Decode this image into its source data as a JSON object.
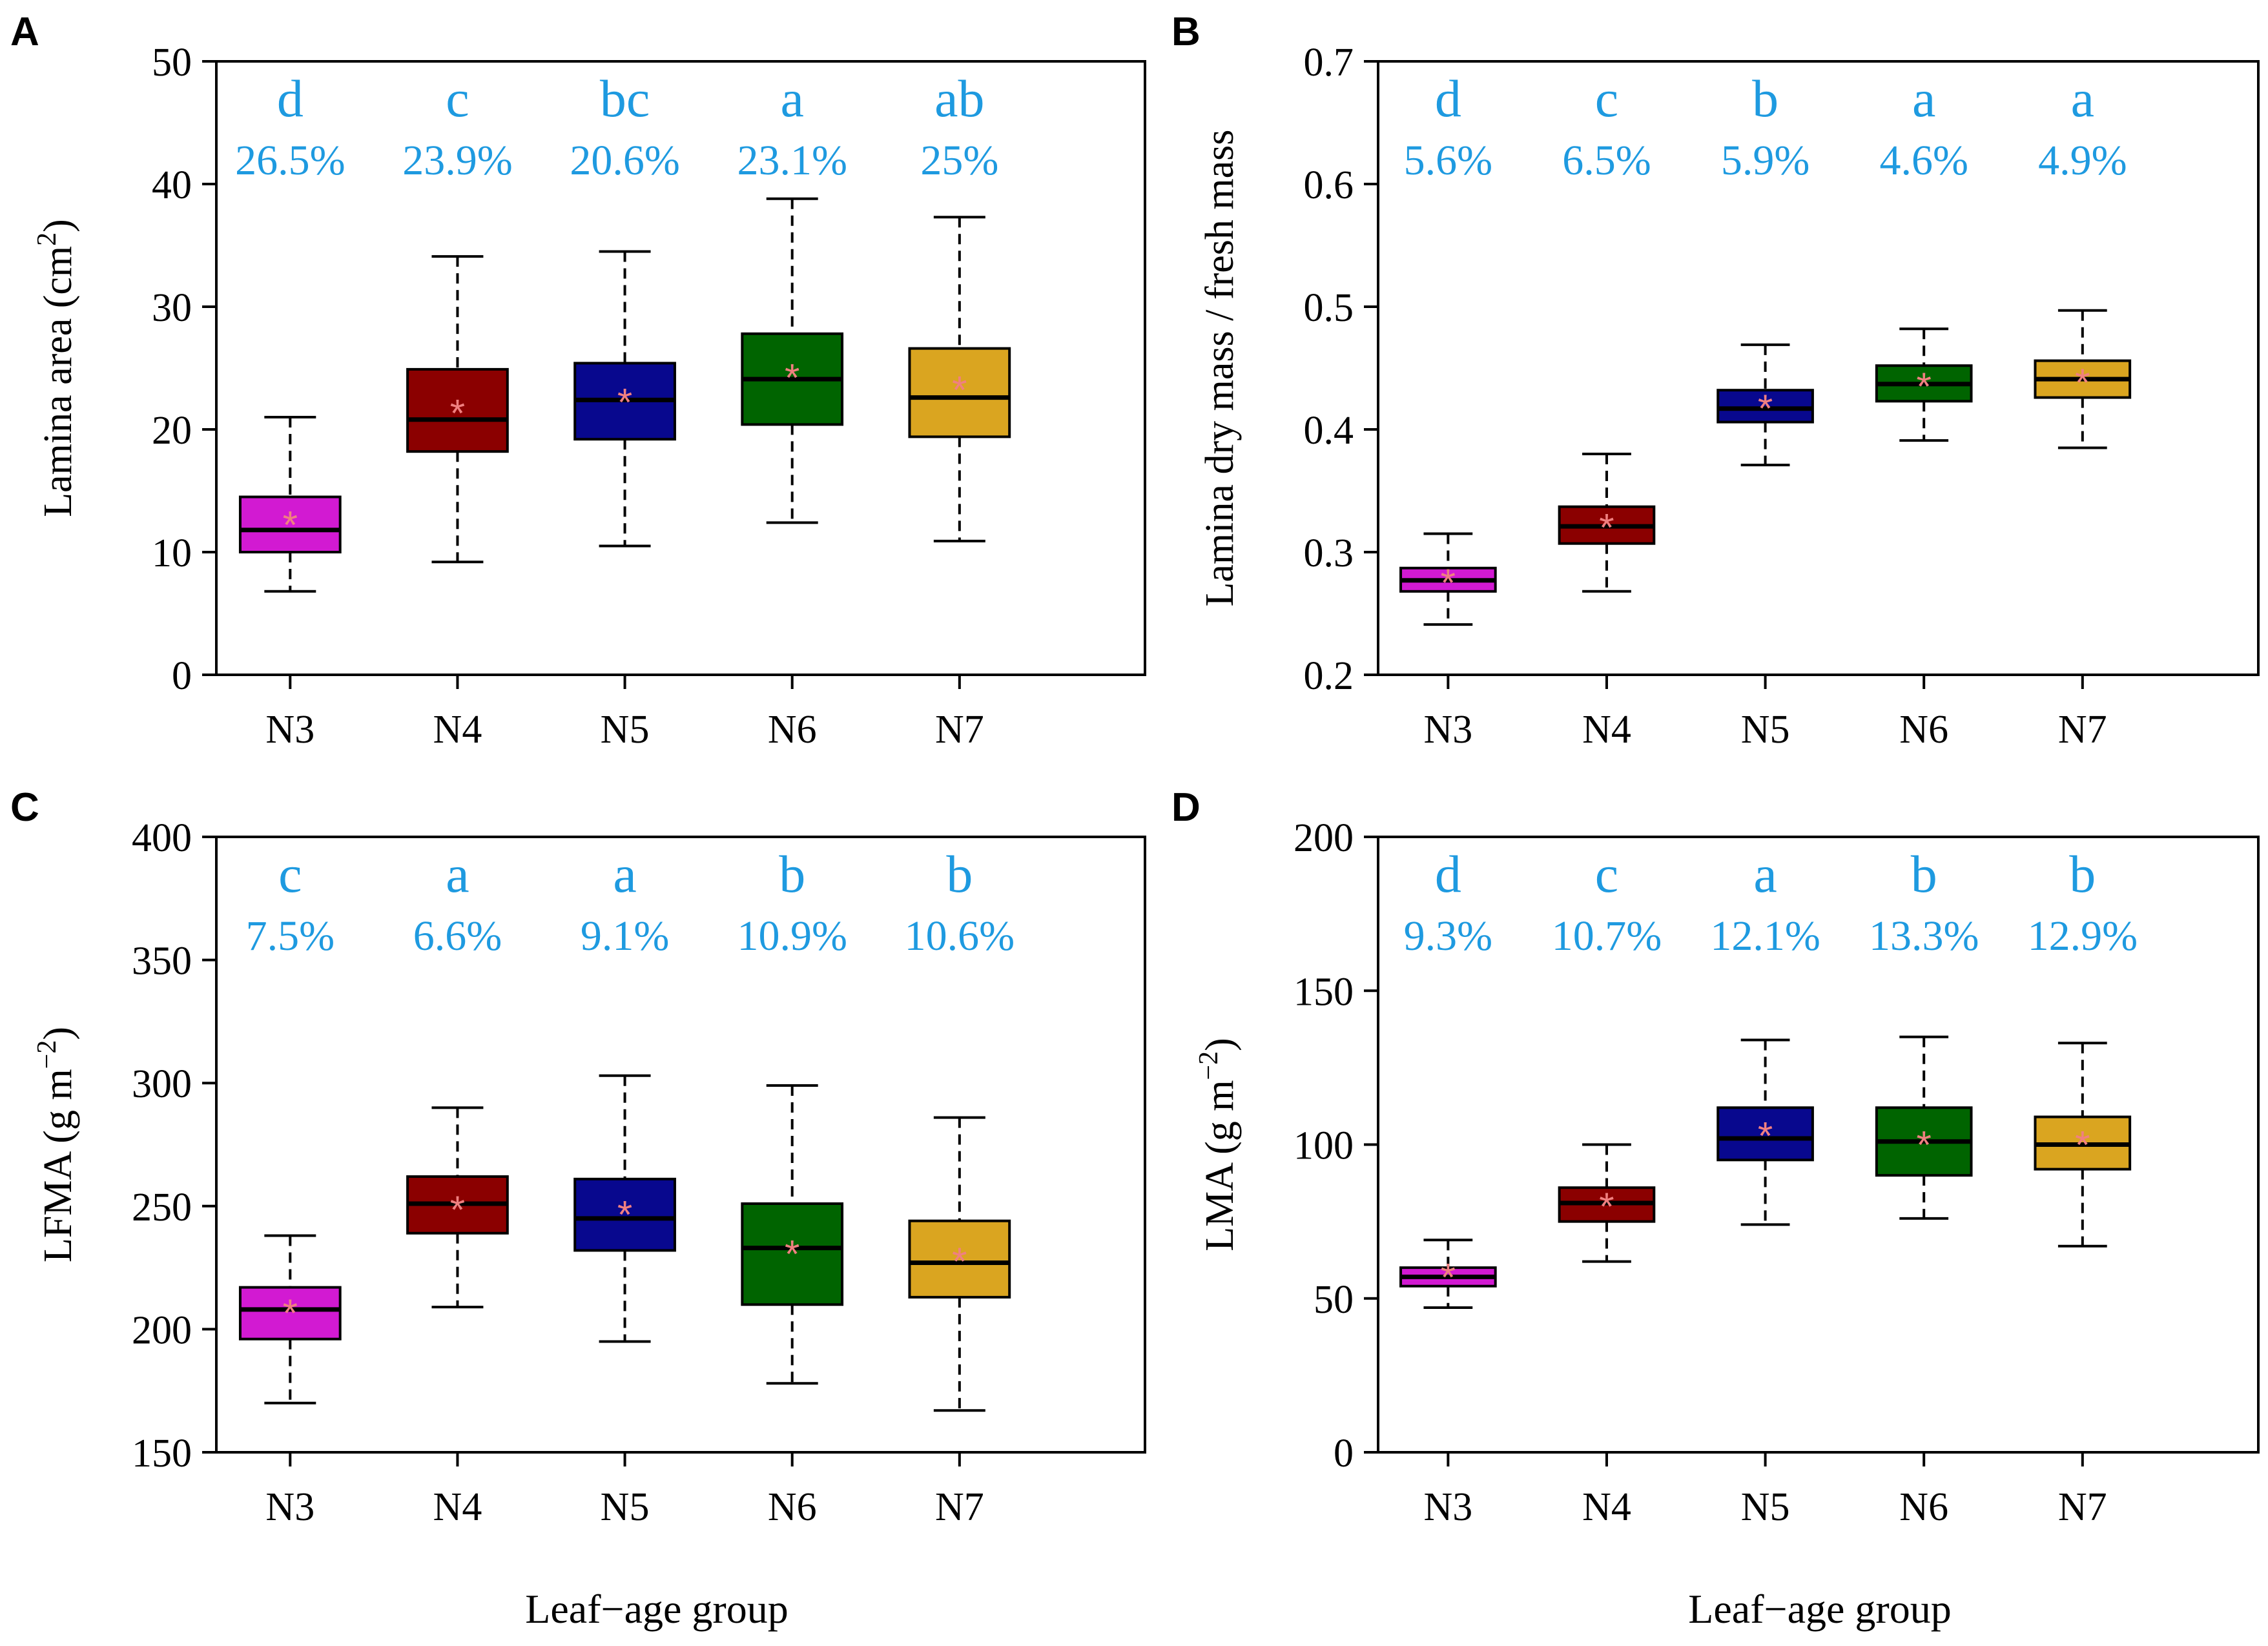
{
  "figure": {
    "x_axis_label": "Leaf−age group"
  },
  "colors": {
    "N3": "#d21ad2",
    "N4": "#8b0000",
    "N5": "#08088e",
    "N6": "#006400",
    "N7": "#daa520",
    "annotation": "#1e9ae0",
    "mean_marker": "#f08080"
  },
  "chart_data": [
    {
      "panel": "A",
      "type": "box",
      "ylabel": "Lamina area (cm",
      "ylabel_sup": "2",
      "ylabel_tail": ")",
      "ylim": [
        0,
        50
      ],
      "yticks": [
        0,
        10,
        20,
        30,
        40,
        50
      ],
      "ytick_labels": [
        "0",
        "10",
        "20",
        "30",
        "40",
        "50"
      ],
      "categories": [
        "N3",
        "N4",
        "N5",
        "N6",
        "N7"
      ],
      "boxes": [
        {
          "whisker_low": 6.8,
          "q1": 10.0,
          "median": 11.8,
          "q3": 14.5,
          "whisker_high": 21.0,
          "mean": 12.5
        },
        {
          "whisker_low": 9.2,
          "q1": 18.2,
          "median": 20.8,
          "q3": 24.9,
          "whisker_high": 34.1,
          "mean": 21.6
        },
        {
          "whisker_low": 10.5,
          "q1": 19.2,
          "median": 22.4,
          "q3": 25.4,
          "whisker_high": 34.5,
          "mean": 22.5
        },
        {
          "whisker_low": 12.4,
          "q1": 20.4,
          "median": 24.1,
          "q3": 27.8,
          "whisker_high": 38.8,
          "mean": 24.5
        },
        {
          "whisker_low": 10.9,
          "q1": 19.4,
          "median": 22.6,
          "q3": 26.6,
          "whisker_high": 37.3,
          "mean": 23.5
        }
      ],
      "letters": [
        "d",
        "c",
        "bc",
        "a",
        "ab"
      ],
      "percents": [
        "26.5%",
        "23.9%",
        "20.6%",
        "23.1%",
        "25%"
      ]
    },
    {
      "panel": "B",
      "type": "box",
      "ylabel": "Lamina dry mass / fresh mass",
      "ylabel_sup": "",
      "ylabel_tail": "",
      "ylim": [
        0.2,
        0.7
      ],
      "yticks": [
        0.2,
        0.3,
        0.4,
        0.5,
        0.6,
        0.7
      ],
      "ytick_labels": [
        "0.2",
        "0.3",
        "0.4",
        "0.5",
        "0.6",
        "0.7"
      ],
      "categories": [
        "N3",
        "N4",
        "N5",
        "N6",
        "N7"
      ],
      "boxes": [
        {
          "whisker_low": 0.241,
          "q1": 0.268,
          "median": 0.277,
          "q3": 0.287,
          "whisker_high": 0.315,
          "mean": 0.278
        },
        {
          "whisker_low": 0.268,
          "q1": 0.307,
          "median": 0.321,
          "q3": 0.337,
          "whisker_high": 0.38,
          "mean": 0.323
        },
        {
          "whisker_low": 0.371,
          "q1": 0.406,
          "median": 0.417,
          "q3": 0.432,
          "whisker_high": 0.469,
          "mean": 0.42
        },
        {
          "whisker_low": 0.391,
          "q1": 0.423,
          "median": 0.437,
          "q3": 0.452,
          "whisker_high": 0.482,
          "mean": 0.438
        },
        {
          "whisker_low": 0.385,
          "q1": 0.426,
          "median": 0.441,
          "q3": 0.456,
          "whisker_high": 0.497,
          "mean": 0.441
        }
      ],
      "letters": [
        "d",
        "c",
        "b",
        "a",
        "a"
      ],
      "percents": [
        "5.6%",
        "6.5%",
        "5.9%",
        "4.6%",
        "4.9%"
      ]
    },
    {
      "panel": "C",
      "type": "box",
      "ylabel": "LFMA (g m",
      "ylabel_sup": "−2",
      "ylabel_tail": ")",
      "ylim": [
        150,
        400
      ],
      "yticks": [
        150,
        200,
        250,
        300,
        350,
        400
      ],
      "ytick_labels": [
        "150",
        "200",
        "250",
        "300",
        "350",
        "400"
      ],
      "categories": [
        "N3",
        "N4",
        "N5",
        "N6",
        "N7"
      ],
      "boxes": [
        {
          "whisker_low": 170,
          "q1": 196,
          "median": 208,
          "q3": 217,
          "whisker_high": 238,
          "mean": 208
        },
        {
          "whisker_low": 209,
          "q1": 239,
          "median": 251,
          "q3": 262,
          "whisker_high": 290,
          "mean": 250
        },
        {
          "whisker_low": 195,
          "q1": 232,
          "median": 245,
          "q3": 261,
          "whisker_high": 303,
          "mean": 248
        },
        {
          "whisker_low": 178,
          "q1": 210,
          "median": 233,
          "q3": 251,
          "whisker_high": 299,
          "mean": 232
        },
        {
          "whisker_low": 167,
          "q1": 213,
          "median": 227,
          "q3": 244,
          "whisker_high": 286,
          "mean": 229
        }
      ],
      "letters": [
        "c",
        "a",
        "a",
        "b",
        "b"
      ],
      "percents": [
        "7.5%",
        "6.6%",
        "9.1%",
        "10.9%",
        "10.6%"
      ]
    },
    {
      "panel": "D",
      "type": "box",
      "ylabel": "LMA (g m",
      "ylabel_sup": "−2",
      "ylabel_tail": ")",
      "ylim": [
        0,
        200
      ],
      "yticks": [
        0,
        50,
        100,
        150,
        200
      ],
      "ytick_labels": [
        "0",
        "50",
        "100",
        "150",
        "200"
      ],
      "categories": [
        "N3",
        "N4",
        "N5",
        "N6",
        "N7"
      ],
      "boxes": [
        {
          "whisker_low": 47,
          "q1": 54,
          "median": 57,
          "q3": 60,
          "whisker_high": 69,
          "mean": 58
        },
        {
          "whisker_low": 62,
          "q1": 75,
          "median": 81,
          "q3": 86,
          "whisker_high": 100,
          "mean": 81
        },
        {
          "whisker_low": 74,
          "q1": 95,
          "median": 102,
          "q3": 112,
          "whisker_high": 134,
          "mean": 104
        },
        {
          "whisker_low": 76,
          "q1": 90,
          "median": 101,
          "q3": 112,
          "whisker_high": 135,
          "mean": 101
        },
        {
          "whisker_low": 67,
          "q1": 92,
          "median": 100,
          "q3": 109,
          "whisker_high": 133,
          "mean": 101
        }
      ],
      "letters": [
        "d",
        "c",
        "a",
        "b",
        "b"
      ],
      "percents": [
        "9.3%",
        "10.7%",
        "12.1%",
        "13.3%",
        "12.9%"
      ]
    }
  ]
}
